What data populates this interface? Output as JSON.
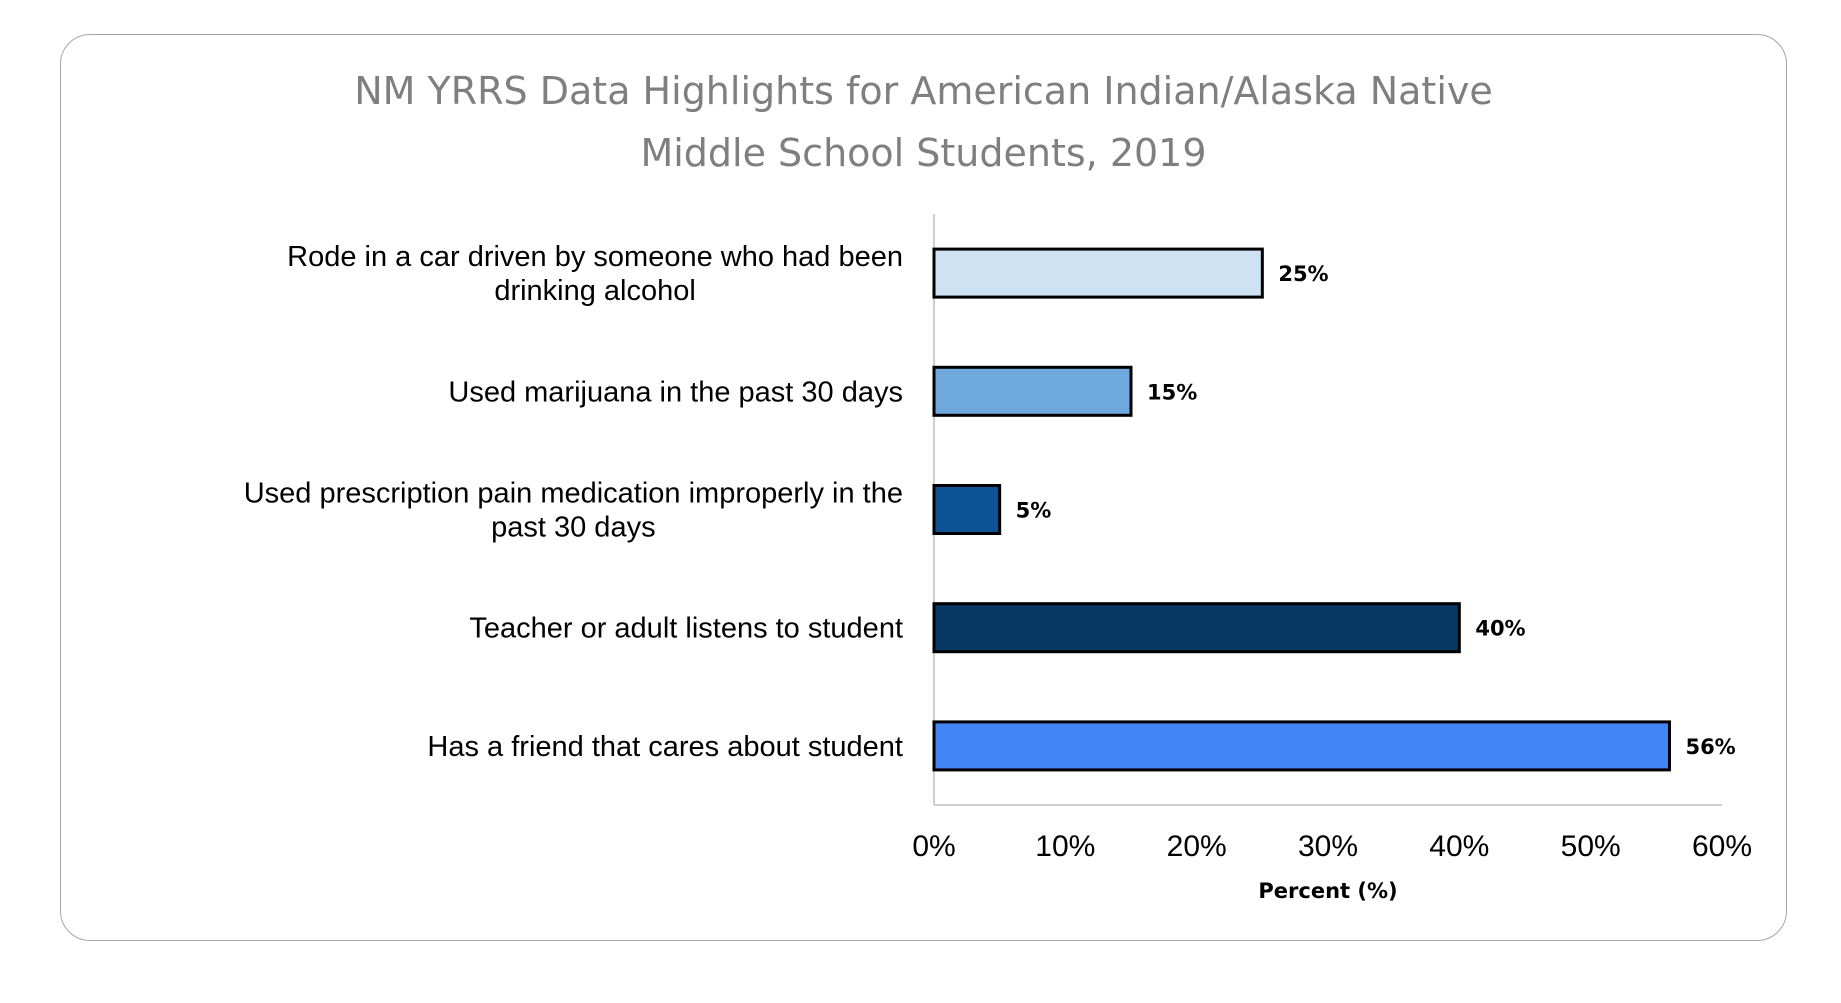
{
  "chart_data": {
    "type": "bar",
    "orientation": "horizontal",
    "title": "NM YRRS Data Highlights for American Indian/Alaska Native Middle School Students, 2019",
    "title_lines": [
      "NM YRRS Data Highlights for American Indian/Alaska Native",
      "Middle School Students, 2019"
    ],
    "categories": [
      [
        "Rode in a car driven by someone who had been",
        "drinking alcohol"
      ],
      [
        "Used marijuana in the past 30 days"
      ],
      [
        "Used prescription pain medication improperly in the",
        "past 30 days"
      ],
      [
        "Teacher or adult listens to student"
      ],
      [
        "Has a friend that cares about student"
      ]
    ],
    "values": [
      25,
      15,
      5,
      40,
      56
    ],
    "data_labels": [
      "25%",
      "15%",
      "5%",
      "40%",
      "56%"
    ],
    "colors": [
      "#cfe2f3",
      "#6fa8dc",
      "#0b5394",
      "#073763",
      "#4285f4"
    ],
    "xlabel": "Percent (%)",
    "ylabel": "",
    "xlim": [
      0,
      60
    ],
    "xticks": [
      "0%",
      "10%",
      "20%",
      "30%",
      "40%",
      "50%",
      "60%"
    ],
    "grid": false,
    "legend": "none"
  }
}
